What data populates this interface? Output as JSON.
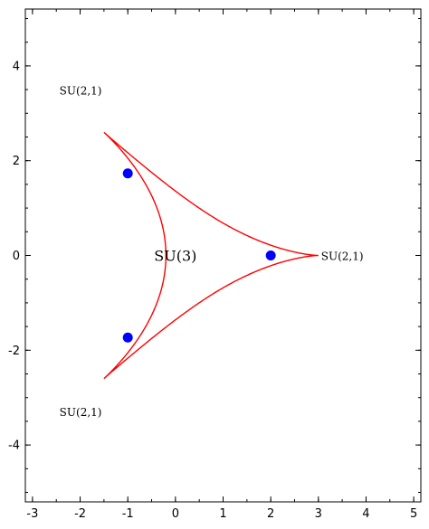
{
  "chart_data": {
    "type": "line",
    "title": "",
    "xlabel": "",
    "ylabel": "",
    "xlim": [
      -3.15,
      5.15
    ],
    "ylim": [
      -5.2,
      5.2
    ],
    "grid": false,
    "colors": {
      "curve": "#ff0000",
      "points": "#0000ff",
      "axes": "#000000"
    },
    "x_ticks": [
      {
        "value": -3,
        "label": "-3"
      },
      {
        "value": -2,
        "label": "-2"
      },
      {
        "value": -1,
        "label": "-1"
      },
      {
        "value": 0,
        "label": "0"
      },
      {
        "value": 1,
        "label": "1"
      },
      {
        "value": 2,
        "label": "2"
      },
      {
        "value": 3,
        "label": "3"
      },
      {
        "value": 4,
        "label": "4"
      },
      {
        "value": 5,
        "label": "5"
      }
    ],
    "y_ticks": [
      {
        "value": -4,
        "label": "-4"
      },
      {
        "value": -2,
        "label": "-2"
      },
      {
        "value": 0,
        "label": "0"
      },
      {
        "value": 2,
        "label": "2"
      },
      {
        "value": 4,
        "label": "4"
      }
    ],
    "x_minor_step": 0.5,
    "y_minor_step": 0.5,
    "curve": {
      "name": "",
      "parametric": "x = 2cos t + cos 2t + k(cos t - cos 2t)^2, y = 2sin t - sin 2t",
      "samples": 720
    },
    "points": [
      {
        "x": 2,
        "y": 0
      },
      {
        "x": -1,
        "y": 1.732
      },
      {
        "x": -1,
        "y": -1.732
      }
    ],
    "annotations": [
      {
        "text": "SU(3)",
        "x": 0,
        "y": 0,
        "size": "large"
      },
      {
        "text": "SU(2,1)",
        "x": 3.5,
        "y": -0.02,
        "size": "small"
      },
      {
        "text": "SU(2,1)",
        "x": -1.99,
        "y": 3.47,
        "size": "small"
      },
      {
        "text": "SU(2,1)",
        "x": -1.99,
        "y": -3.31,
        "size": "small"
      }
    ]
  }
}
